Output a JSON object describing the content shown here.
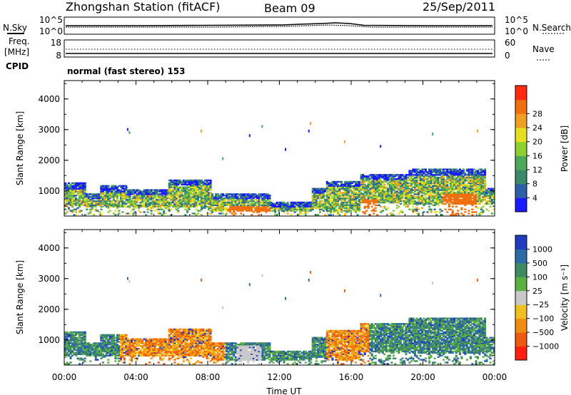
{
  "header": {
    "station": "Zhongshan Station (fitACF)",
    "beam": "Beam 09",
    "date": "25/Sep/2011"
  },
  "top_panel": {
    "left_label": "N.Sky",
    "right_label": "N.Search",
    "left_ticks": [
      "10^5",
      "10^0"
    ],
    "right_ticks": [
      "10^5",
      "10^0"
    ]
  },
  "freq_panel": {
    "left_label_top": "Freq.",
    "left_label_bottom": "[MHz]",
    "right_label": "Nave",
    "left_ticks": [
      "18",
      "8"
    ],
    "right_ticks": [
      "60",
      "0"
    ]
  },
  "cpid": {
    "label": "CPID",
    "text": "normal (fast stereo) 153"
  },
  "chart_data": [
    {
      "type": "heatmap",
      "name": "Power",
      "ylabel": "Slant Range [km]",
      "xlabel": "",
      "x_ticks": [
        "00:00",
        "04:00",
        "08:00",
        "12:00",
        "16:00",
        "20:00",
        "00:00"
      ],
      "y_ticks": [
        "1000",
        "2000",
        "3000",
        "4000"
      ],
      "xlim_hours": [
        0,
        24
      ],
      "ylim_km": [
        180,
        4600
      ],
      "colorbar": {
        "label": "Power [dB]",
        "ticks": [
          "4",
          "8",
          "12",
          "16",
          "20",
          "24",
          "28"
        ],
        "colors": [
          "#1a1aff",
          "#2d5fa6",
          "#3a8a6a",
          "#4da85a",
          "#8fd030",
          "#e6e020",
          "#f0a020",
          "#f07010",
          "#ff2a10"
        ]
      }
    },
    {
      "type": "heatmap",
      "name": "Velocity",
      "ylabel": "Slant Range [km]",
      "xlabel": "Time UT",
      "x_ticks": [
        "00:00",
        "04:00",
        "08:00",
        "12:00",
        "16:00",
        "20:00",
        "00:00"
      ],
      "y_ticks": [
        "1000",
        "2000",
        "3000",
        "4000"
      ],
      "xlim_hours": [
        0,
        24
      ],
      "ylim_km": [
        180,
        4600
      ],
      "colorbar": {
        "label": "Velocity [m s⁻¹]",
        "ticks": [
          "1000",
          "500",
          "100",
          "25",
          "−25",
          "−100",
          "−500",
          "−1000"
        ],
        "colors": [
          "#1f3cc0",
          "#2e6aa8",
          "#3f8a60",
          "#5ab040",
          "#c8c8c8",
          "#f0c020",
          "#f08c10",
          "#f05a10",
          "#ff2010"
        ]
      }
    }
  ],
  "colors": {
    "axis": "#000000",
    "ground_scatter": "#c8c8c8"
  }
}
